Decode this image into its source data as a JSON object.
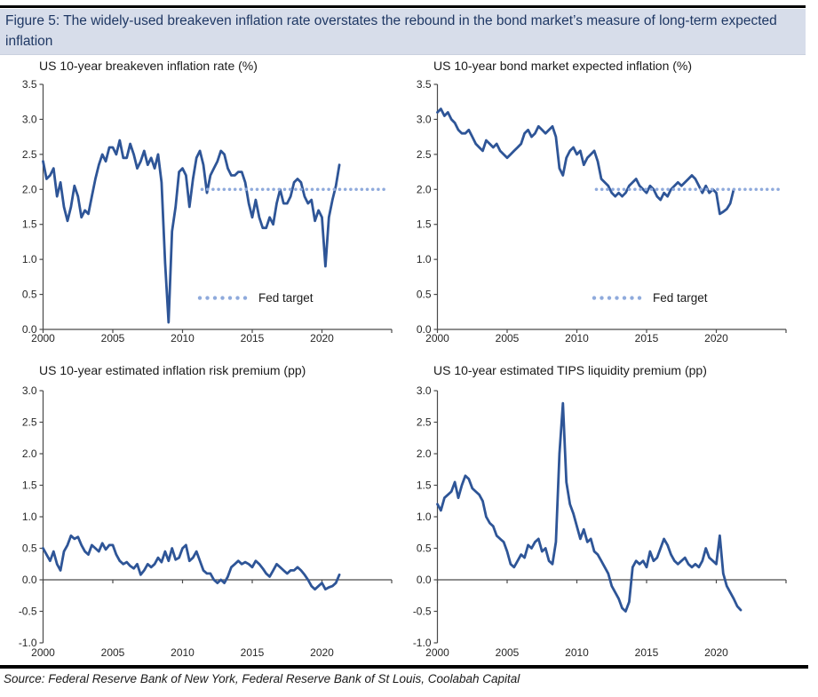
{
  "figure": {
    "title": "Figure 5: The widely-used breakeven inflation rate overstates the rebound in the bond market’s measure of long-term expected inflation",
    "source": "Source: Federal Reserve Bank of New York, Federal Reserve Bank of St Louis, Coolabah Capital"
  },
  "colors": {
    "series_line": "#2E5597",
    "fed_target_dots": "#8FAADC",
    "title_bar_bg": "#D7DDEA",
    "title_text": "#1F3864",
    "axis": "#4A4A4A",
    "rule": "#000000"
  },
  "chart_data": [
    {
      "type": "line",
      "title": "US 10-year breakeven inflation rate (%)",
      "ylim": [
        0.0,
        3.5
      ],
      "ytick_step": 0.5,
      "ytick_labels": [
        "0.0",
        "0.5",
        "1.0",
        "1.5",
        "2.0",
        "2.5",
        "3.0",
        "3.5"
      ],
      "xlim": [
        2000,
        2025
      ],
      "xticks": [
        2000,
        2005,
        2010,
        2015,
        2020
      ],
      "grid": false,
      "legend_position": "inside-lower-middle",
      "fed_target": {
        "label": "Fed target",
        "value": 2.0,
        "x_start": 2011.4,
        "x_end": 2024.7
      },
      "series": [
        {
          "name": "US 10-year breakeven inflation rate",
          "x_start": 2000,
          "x_step": 0.25,
          "values": [
            2.4,
            2.15,
            2.2,
            2.3,
            1.9,
            2.1,
            1.75,
            1.55,
            1.75,
            2.05,
            1.9,
            1.6,
            1.7,
            1.65,
            1.9,
            2.15,
            2.35,
            2.5,
            2.4,
            2.6,
            2.6,
            2.5,
            2.7,
            2.45,
            2.45,
            2.65,
            2.5,
            2.3,
            2.4,
            2.55,
            2.35,
            2.45,
            2.3,
            2.5,
            2.1,
            0.95,
            0.1,
            1.4,
            1.75,
            2.25,
            2.3,
            2.2,
            1.75,
            2.15,
            2.45,
            2.55,
            2.35,
            1.95,
            2.2,
            2.3,
            2.4,
            2.55,
            2.5,
            2.3,
            2.2,
            2.2,
            2.25,
            2.25,
            2.1,
            1.8,
            1.6,
            1.85,
            1.6,
            1.45,
            1.45,
            1.6,
            1.5,
            1.8,
            2.0,
            1.8,
            1.8,
            1.9,
            2.1,
            2.15,
            2.1,
            1.9,
            1.8,
            1.85,
            1.55,
            1.7,
            1.6,
            0.9,
            1.6,
            1.85,
            2.05,
            2.35
          ]
        }
      ]
    },
    {
      "type": "line",
      "title": "US 10-year bond market expected inflation (%)",
      "ylim": [
        0.0,
        3.5
      ],
      "ytick_step": 0.5,
      "ytick_labels": [
        "0.0",
        "0.5",
        "1.0",
        "1.5",
        "2.0",
        "2.5",
        "3.0",
        "3.5"
      ],
      "xlim": [
        2000,
        2025
      ],
      "xticks": [
        2000,
        2005,
        2010,
        2015,
        2020
      ],
      "grid": false,
      "legend_position": "inside-lower-middle",
      "fed_target": {
        "label": "Fed target",
        "value": 2.0,
        "x_start": 2011.4,
        "x_end": 2024.7
      },
      "series": [
        {
          "name": "US 10-year bond market expected inflation",
          "x_start": 2000,
          "x_step": 0.25,
          "values": [
            3.1,
            3.15,
            3.05,
            3.1,
            3.0,
            2.95,
            2.85,
            2.8,
            2.8,
            2.85,
            2.75,
            2.65,
            2.6,
            2.55,
            2.7,
            2.65,
            2.6,
            2.65,
            2.55,
            2.5,
            2.45,
            2.5,
            2.55,
            2.6,
            2.65,
            2.8,
            2.85,
            2.75,
            2.8,
            2.9,
            2.85,
            2.8,
            2.85,
            2.9,
            2.75,
            2.3,
            2.2,
            2.45,
            2.55,
            2.6,
            2.5,
            2.55,
            2.35,
            2.45,
            2.5,
            2.55,
            2.4,
            2.15,
            2.1,
            2.05,
            1.95,
            1.9,
            1.95,
            1.9,
            1.95,
            2.05,
            2.1,
            2.15,
            2.05,
            2.0,
            1.95,
            2.05,
            2.0,
            1.9,
            1.85,
            1.95,
            1.9,
            2.0,
            2.05,
            2.1,
            2.05,
            2.1,
            2.15,
            2.2,
            2.15,
            2.05,
            1.95,
            2.05,
            1.95,
            2.0,
            1.95,
            1.65,
            1.68,
            1.72,
            1.8,
            2.0
          ]
        }
      ]
    },
    {
      "type": "line",
      "title": "US 10-year estimated inflation risk premium (pp)",
      "ylim": [
        -1.0,
        3.0
      ],
      "ytick_step": 0.5,
      "ytick_labels": [
        "-1.0",
        "-0.5",
        "0.0",
        "0.5",
        "1.0",
        "1.5",
        "2.0",
        "2.5",
        "3.0"
      ],
      "xlim": [
        2000,
        2025
      ],
      "xticks": [
        2000,
        2005,
        2010,
        2015,
        2020
      ],
      "grid": false,
      "series": [
        {
          "name": "US 10-year estimated inflation risk premium",
          "x_start": 2000,
          "x_step": 0.25,
          "values": [
            0.5,
            0.4,
            0.3,
            0.45,
            0.25,
            0.15,
            0.45,
            0.55,
            0.7,
            0.65,
            0.68,
            0.55,
            0.45,
            0.4,
            0.55,
            0.5,
            0.45,
            0.58,
            0.48,
            0.55,
            0.55,
            0.4,
            0.3,
            0.25,
            0.28,
            0.22,
            0.18,
            0.25,
            0.08,
            0.15,
            0.25,
            0.2,
            0.25,
            0.35,
            0.28,
            0.45,
            0.3,
            0.5,
            0.32,
            0.35,
            0.5,
            0.55,
            0.3,
            0.35,
            0.45,
            0.3,
            0.15,
            0.1,
            0.1,
            0.0,
            -0.05,
            0.0,
            -0.05,
            0.05,
            0.2,
            0.25,
            0.3,
            0.25,
            0.28,
            0.25,
            0.2,
            0.3,
            0.25,
            0.18,
            0.1,
            0.05,
            0.15,
            0.25,
            0.2,
            0.15,
            0.1,
            0.15,
            0.15,
            0.2,
            0.15,
            0.08,
            0.0,
            -0.1,
            -0.15,
            -0.1,
            -0.05,
            -0.15,
            -0.12,
            -0.1,
            -0.05,
            0.08
          ]
        }
      ]
    },
    {
      "type": "line",
      "title": "US 10-year estimated TIPS liquidity premium (pp)",
      "ylim": [
        -1.0,
        3.0
      ],
      "ytick_step": 0.5,
      "ytick_labels": [
        "-1.0",
        "-0.5",
        "0.0",
        "0.5",
        "1.0",
        "1.5",
        "2.0",
        "2.5",
        "3.0"
      ],
      "xlim": [
        2000,
        2025
      ],
      "xticks": [
        2000,
        2005,
        2010,
        2015,
        2020
      ],
      "grid": false,
      "series": [
        {
          "name": "US 10-year estimated TIPS liquidity premium",
          "x_start": 2000,
          "x_step": 0.25,
          "values": [
            1.2,
            1.1,
            1.3,
            1.35,
            1.4,
            1.55,
            1.3,
            1.5,
            1.65,
            1.6,
            1.45,
            1.4,
            1.35,
            1.25,
            1.0,
            0.9,
            0.85,
            0.7,
            0.65,
            0.6,
            0.45,
            0.25,
            0.2,
            0.3,
            0.4,
            0.35,
            0.55,
            0.5,
            0.6,
            0.65,
            0.45,
            0.5,
            0.3,
            0.25,
            0.6,
            2.0,
            2.8,
            1.55,
            1.2,
            1.05,
            0.85,
            0.65,
            0.8,
            0.6,
            0.65,
            0.45,
            0.4,
            0.3,
            0.2,
            0.1,
            -0.1,
            -0.2,
            -0.3,
            -0.45,
            -0.5,
            -0.35,
            0.2,
            0.3,
            0.25,
            0.3,
            0.2,
            0.45,
            0.3,
            0.35,
            0.5,
            0.65,
            0.55,
            0.4,
            0.3,
            0.25,
            0.3,
            0.35,
            0.25,
            0.2,
            0.25,
            0.2,
            0.3,
            0.5,
            0.35,
            0.3,
            0.25,
            0.7,
            0.1,
            -0.1,
            -0.2,
            -0.3,
            -0.42,
            -0.48
          ]
        }
      ]
    }
  ]
}
